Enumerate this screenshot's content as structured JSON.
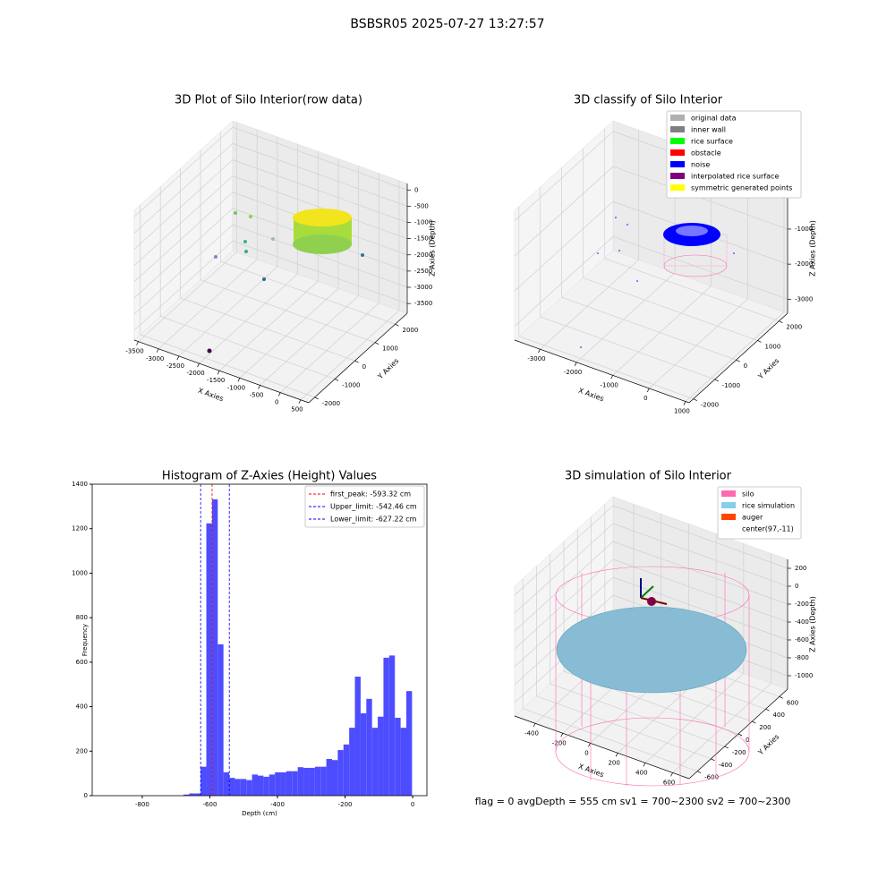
{
  "suptitle": "BSBSR05 2025-07-27 13:27:57",
  "footer": "flag = 0     avgDepth = 555 cm  sv1 = 700~2300  sv2 = 700~2300",
  "chart_data": [
    {
      "type": "scatter3d",
      "title": "3D Plot of Silo Interior(row data)",
      "xlabel": "X Axies",
      "ylabel": "Y Axies",
      "zlabel": "Z Axies (Depth)",
      "xlim": [
        -3600,
        700
      ],
      "ylim": [
        -2300,
        2600
      ],
      "zlim": [
        -3800,
        200
      ],
      "xticks": [
        -3500,
        -3000,
        -2500,
        -2000,
        -1500,
        -1000,
        -500,
        0,
        500
      ],
      "yticks": [
        -2000,
        -1000,
        0,
        1000,
        2000
      ],
      "zticks": [
        -3500,
        -3000,
        -2500,
        -2000,
        -1500,
        -1000,
        -500,
        0
      ]
    },
    {
      "type": "scatter3d",
      "title": "3D classify of Silo Interior",
      "xlabel": "X Axies",
      "ylabel": "Y Axies",
      "zlabel": "Z Axies (Depth)",
      "xlim": [
        -3700,
        1100
      ],
      "ylim": [
        -2200,
        2400
      ],
      "zlim": [
        -3400,
        300
      ],
      "xticks": [
        -3000,
        -2000,
        -1000,
        0,
        1000
      ],
      "yticks": [
        -2000,
        -1000,
        0,
        1000,
        2000
      ],
      "zticks": [
        -3000,
        -2000,
        -1000,
        0
      ],
      "legend": [
        {
          "name": "original data",
          "color": "#b0b0b0"
        },
        {
          "name": "inner wall",
          "color": "#808080"
        },
        {
          "name": "rice surface",
          "color": "#00ff00"
        },
        {
          "name": "obstacle",
          "color": "#ff0000"
        },
        {
          "name": "noise",
          "color": "#0000ff"
        },
        {
          "name": "interpolated rice surface",
          "color": "#800080"
        },
        {
          "name": "symmetric generated points",
          "color": "#ffff00"
        }
      ]
    },
    {
      "type": "histogram",
      "title": "Histogram of Z-Axies (Height) Values",
      "xlabel": "Depth (cm)",
      "ylabel": "Frequency",
      "color": "#4d4dff",
      "xlim": [
        -948,
        42
      ],
      "ylim": [
        0,
        1400
      ],
      "xticks": [
        -800,
        -600,
        -400,
        -200,
        0
      ],
      "yticks": [
        0,
        200,
        400,
        600,
        800,
        1000,
        1200,
        1400
      ],
      "bins": [
        -678,
        -661.1,
        -644.2,
        -627.3,
        -610.4,
        -593.5,
        -576.6,
        -559.7,
        -542.8,
        -525.9,
        -509,
        -492.1,
        -475.2,
        -458.3,
        -441.4,
        -424.5,
        -407.6,
        -390.7,
        -373.8,
        -356.9,
        -340,
        -323.1,
        -306.2,
        -289.3,
        -272.4,
        -255.5,
        -238.6,
        -221.7,
        -204.8,
        -187.9,
        -171,
        -154.1,
        -137.2,
        -120.3,
        -103.4,
        -86.5,
        -69.6,
        -52.7,
        -35.8,
        -18.9,
        -2
      ],
      "values": [
        5,
        10,
        10,
        130,
        1224,
        1332,
        680,
        105,
        80,
        75,
        75,
        70,
        95,
        90,
        85,
        95,
        105,
        105,
        110,
        110,
        128,
        125,
        125,
        130,
        130,
        165,
        160,
        205,
        230,
        305,
        535,
        370,
        435,
        305,
        355,
        620,
        630,
        350,
        305,
        470
      ],
      "vlines": [
        {
          "label": "first_peak: -593.32 cm",
          "value": -593.32,
          "color": "#ff0000"
        },
        {
          "label": "Upper_limit: -542.46 cm",
          "value": -542.46,
          "color": "#0000ff"
        },
        {
          "label": "Lower_limit: -627.22 cm",
          "value": -627.22,
          "color": "#0000ff"
        }
      ]
    },
    {
      "type": "wireframe3d",
      "title": "3D simulation of Silo Interior",
      "xlabel": "X Axies",
      "ylabel": "Y Axies",
      "zlabel": "Z Axies (Depth)",
      "xlim": [
        -550,
        720
      ],
      "ylim": [
        -720,
        720
      ],
      "zlim": [
        -1150,
        300
      ],
      "xticks": [
        -400,
        -200,
        0,
        200,
        400,
        600
      ],
      "yticks": [
        -600,
        -400,
        -200,
        0,
        200,
        400,
        600
      ],
      "zticks": [
        -1000,
        -800,
        -600,
        -400,
        -200,
        0,
        200
      ],
      "legend": [
        {
          "name": "silo",
          "color": "#ff69b4"
        },
        {
          "name": "rice simulation",
          "color": "#87ceeb"
        },
        {
          "name": "auger",
          "color": "#ff4500"
        },
        {
          "name": "center(97,-11)",
          "color": "#ffffff"
        }
      ]
    }
  ]
}
